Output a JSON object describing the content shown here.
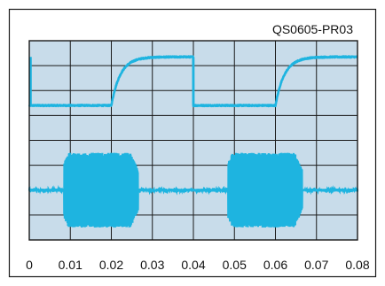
{
  "figure_id": "QS0605-PR03",
  "colors": {
    "plot_background": "#c8dcea",
    "grid": "#1a1a1a",
    "trace": "#1eb4e0",
    "frame": "#1a1a1a"
  },
  "chart_data": {
    "type": "line",
    "title": "",
    "xlabel": "",
    "ylabel": "",
    "xlim": [
      0,
      0.08
    ],
    "x_ticks": [
      "0",
      "0.01",
      "0.02",
      "0.03",
      "0.04",
      "0.05",
      "0.06",
      "0.07",
      "0.08"
    ],
    "grid": true,
    "grid_divisions": {
      "x": 8,
      "y": 8
    },
    "ylim": [
      0,
      8
    ],
    "series": [
      {
        "kind": "step_response",
        "low_level": 5.4,
        "high_level": 7.35,
        "step_times": [
          0.0,
          0.02,
          0.04,
          0.06
        ],
        "edges": [
          "fall",
          "rise",
          "fall",
          "rise"
        ],
        "time_constant": 0.0022
      },
      {
        "kind": "burst",
        "baseline": 2.0,
        "burst_windows": [
          [
            0.0085,
            0.0265
          ],
          [
            0.0485,
            0.0665
          ]
        ],
        "burst_amplitude": 1.5,
        "noise_amplitude": 0.06
      }
    ]
  }
}
